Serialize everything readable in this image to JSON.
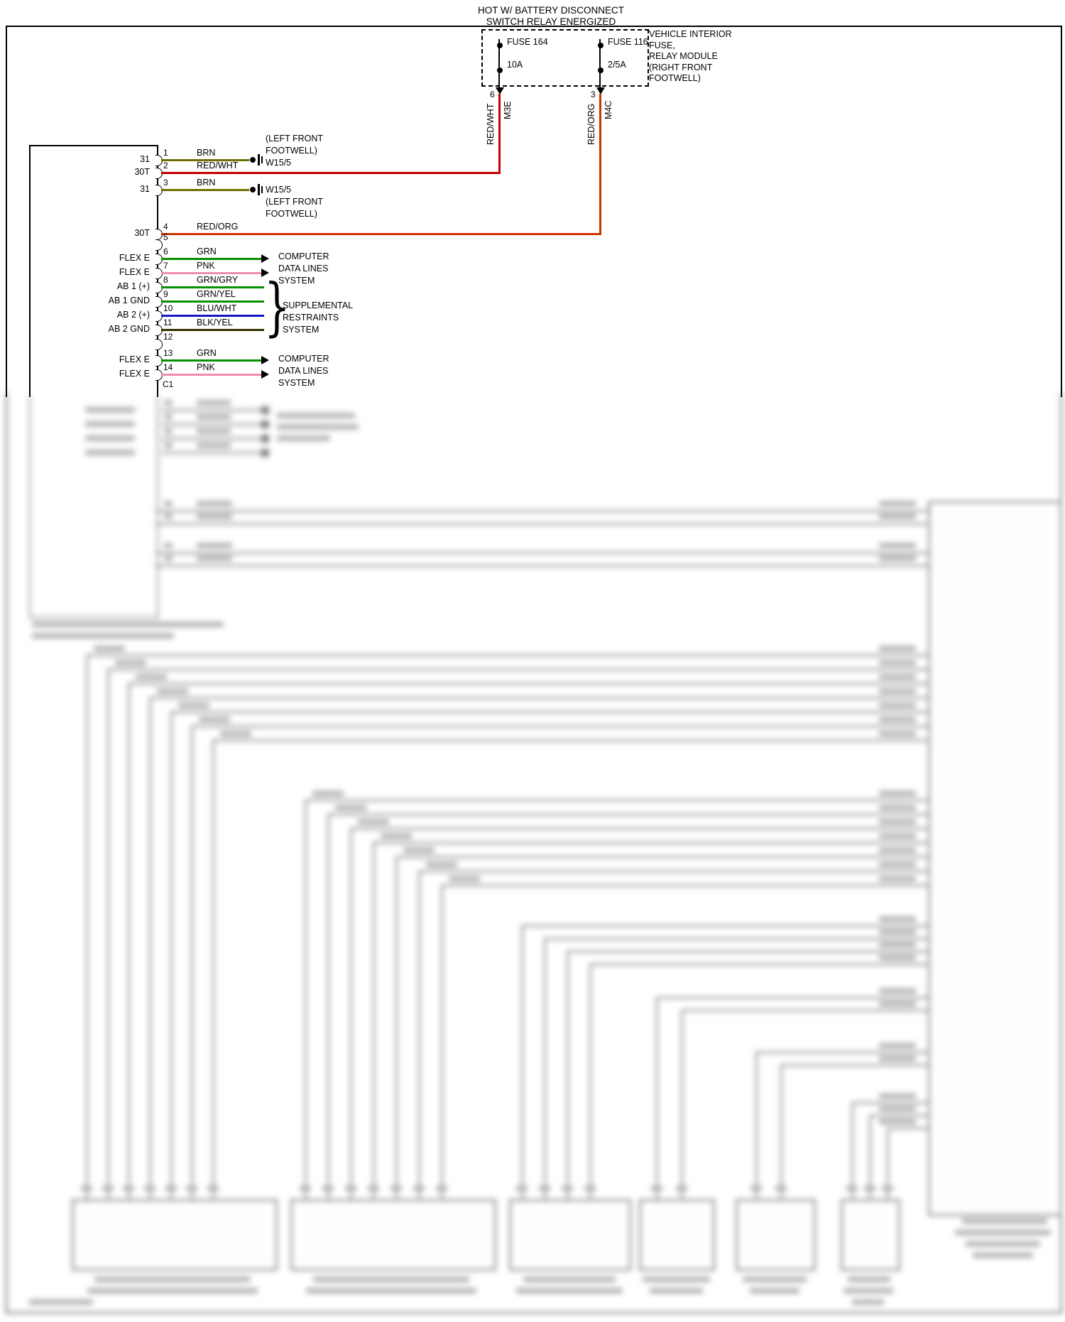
{
  "header": {
    "line1": "HOT W/ BATTERY DISCONNECT",
    "line2": "SWITCH RELAY ENERGIZED"
  },
  "fusebox": {
    "fuse1_name": "FUSE 164",
    "fuse1_rating": "10A",
    "fuse2_name": "FUSE 116",
    "fuse2_rating": "2/5A",
    "module_lines": [
      "VEHICLE INTERIOR",
      "FUSE,",
      "RELAY MODULE",
      "(RIGHT FRONT",
      "FOOTWELL)"
    ]
  },
  "feeds": {
    "feed1": {
      "terminal": "6",
      "connector": "M3E",
      "wire": "RED/WHT"
    },
    "feed2": {
      "terminal": "3",
      "connector": "M4C",
      "wire": "RED/ORG"
    }
  },
  "connector": {
    "designator": "C1",
    "rows": [
      {
        "num": "1",
        "label": "31",
        "wire": "BRN"
      },
      {
        "num": "2",
        "label": "30T",
        "wire": "RED/WHT"
      },
      {
        "num": "3",
        "label": "31",
        "wire": "BRN"
      },
      {
        "num": "4",
        "label": "30T",
        "wire": "RED/ORG"
      },
      {
        "num": "5",
        "label": "",
        "wire": ""
      },
      {
        "num": "6",
        "label": "FLEX E",
        "wire": "GRN"
      },
      {
        "num": "7",
        "label": "FLEX E",
        "wire": "PNK"
      },
      {
        "num": "8",
        "label": "AB 1 (+)",
        "wire": "GRN/GRY"
      },
      {
        "num": "9",
        "label": "AB 1 GND",
        "wire": "GRN/YEL"
      },
      {
        "num": "10",
        "label": "AB 2 (+)",
        "wire": "BLU/WHT"
      },
      {
        "num": "11",
        "label": "AB 2 GND",
        "wire": "BLK/YEL"
      },
      {
        "num": "12",
        "label": "",
        "wire": ""
      },
      {
        "num": "13",
        "label": "FLEX E",
        "wire": "GRN"
      },
      {
        "num": "14",
        "label": "FLEX E",
        "wire": "PNK"
      }
    ]
  },
  "destinations": {
    "ground1": [
      "(LEFT FRONT",
      "FOOTWELL)",
      "W15/5"
    ],
    "ground2": [
      "W15/5",
      "(LEFT FRONT",
      "FOOTWELL)"
    ],
    "computer1": [
      "COMPUTER",
      "DATA LINES",
      "SYSTEM"
    ],
    "srs": [
      "SUPPLEMENTAL",
      "RESTRAINTS",
      "SYSTEM"
    ],
    "computer2": [
      "COMPUTER",
      "DATA LINES",
      "SYSTEM"
    ],
    "srs_brace": "}"
  },
  "colors": {
    "red": "#c40000",
    "red_org": "#cc3300",
    "brn": "#6f6f00",
    "grn": "#089000",
    "pnk": "#f08cb4",
    "blu": "#1616c8",
    "blk_yel": "#353500",
    "blur_line": "#9a9a9a"
  }
}
